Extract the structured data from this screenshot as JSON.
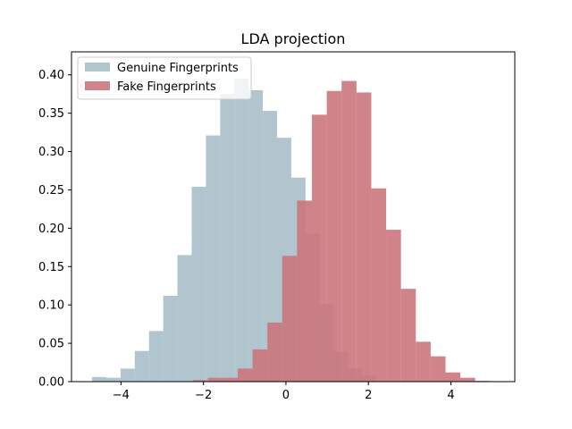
{
  "chart_data": {
    "type": "bar",
    "title": "LDA projection",
    "xlabel": "",
    "ylabel": "",
    "xlim": [
      -5.2,
      5.55
    ],
    "ylim": [
      0,
      0.43
    ],
    "grid": false,
    "legend_position": "top-left",
    "x_ticks": [
      -4,
      -2,
      0,
      2,
      4
    ],
    "y_ticks": [
      0.0,
      0.05,
      0.1,
      0.15,
      0.2,
      0.25,
      0.3,
      0.35,
      0.4
    ],
    "series": [
      {
        "name": "Genuine Fingerprints",
        "color": "#a8bfc9",
        "bin_start": -4.7,
        "bin_width": 0.345,
        "values": [
          0.006,
          0.005,
          0.017,
          0.04,
          0.066,
          0.112,
          0.165,
          0.254,
          0.321,
          0.375,
          0.395,
          0.38,
          0.353,
          0.318,
          0.266,
          0.193,
          0.101,
          0.039,
          0.017,
          0.008
        ]
      },
      {
        "name": "Fake Fingerprints",
        "color": "#cb767c",
        "bin_start": -2.25,
        "bin_width": 0.36,
        "values": [
          0.002,
          0.005,
          0.005,
          0.017,
          0.042,
          0.077,
          0.164,
          0.236,
          0.348,
          0.379,
          0.392,
          0.377,
          0.252,
          0.198,
          0.121,
          0.052,
          0.033,
          0.012,
          0.005,
          0.001
        ]
      }
    ]
  }
}
